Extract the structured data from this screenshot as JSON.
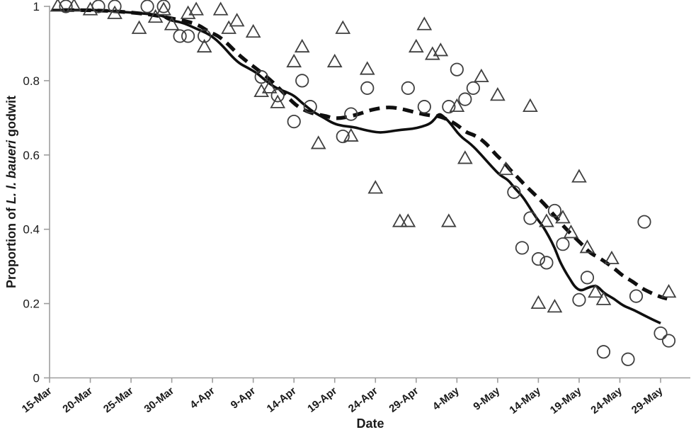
{
  "figure": {
    "x_axis_title": "Date",
    "y_axis_title_prefix": "Proportion of ",
    "y_axis_title_italic": "L. l. baueri",
    "y_axis_title_suffix": " godwit",
    "colors": {
      "background": "#ffffff",
      "axis_line": "#9e9e9e",
      "tick_text": "#1a1a1a",
      "marker_stroke": "#3f3f3f",
      "trend_line": "#0f0f0f"
    }
  },
  "chart_data": {
    "type": "scatter",
    "title": "",
    "xlabel": "Date",
    "ylabel": "Proportion of L. l. baueri godwit",
    "ylim": [
      0,
      1
    ],
    "grid": false,
    "legend": "none",
    "y_ticks": [
      0,
      0.2,
      0.4,
      0.6,
      0.8,
      1
    ],
    "y_tick_labels": [
      "0",
      "0.2",
      "0.4",
      "0.6",
      "0.8",
      "1"
    ],
    "x_axis": {
      "start": "15-Mar",
      "end": "29-May",
      "tick_interval_days": 5,
      "tick_labels": [
        "15-Mar",
        "20-Mar",
        "25-Mar",
        "30-Mar",
        "4-Apr",
        "9-Apr",
        "14-Apr",
        "19-Apr",
        "24-Apr",
        "29-Apr",
        "4-May",
        "9-May",
        "14-May",
        "19-May",
        "24-May",
        "29-May"
      ]
    },
    "series": [
      {
        "name": "circle observations",
        "marker": "circle",
        "points": [
          [
            "17-Mar",
            1.0
          ],
          [
            "21-Mar",
            1.0
          ],
          [
            "23-Mar",
            1.0
          ],
          [
            "27-Mar",
            1.0
          ],
          [
            "29-Mar",
            1.0
          ],
          [
            "31-Mar",
            0.92
          ],
          [
            "1-Apr",
            0.92
          ],
          [
            "3-Apr",
            0.92
          ],
          [
            "10-Apr",
            0.81
          ],
          [
            "12-Apr",
            0.76
          ],
          [
            "14-Apr",
            0.69
          ],
          [
            "15-Apr",
            0.8
          ],
          [
            "16-Apr",
            0.73
          ],
          [
            "20-Apr",
            0.65
          ],
          [
            "21-Apr",
            0.71
          ],
          [
            "23-Apr",
            0.78
          ],
          [
            "28-Apr",
            0.78
          ],
          [
            "30-Apr",
            0.73
          ],
          [
            "3-May",
            0.73
          ],
          [
            "4-May",
            0.83
          ],
          [
            "5-May",
            0.75
          ],
          [
            "6-May",
            0.78
          ],
          [
            "11-May",
            0.5
          ],
          [
            "12-May",
            0.35
          ],
          [
            "13-May",
            0.43
          ],
          [
            "14-May",
            0.32
          ],
          [
            "15-May",
            0.31
          ],
          [
            "16-May",
            0.45
          ],
          [
            "17-May",
            0.36
          ],
          [
            "19-May",
            0.21
          ],
          [
            "20-May",
            0.27
          ],
          [
            "22-May",
            0.07
          ],
          [
            "25-May",
            0.05
          ],
          [
            "26-May",
            0.22
          ],
          [
            "27-May",
            0.42
          ],
          [
            "29-May",
            0.12
          ],
          [
            "30-May",
            0.1
          ]
        ]
      },
      {
        "name": "triangle observations",
        "marker": "triangle",
        "points": [
          [
            "16-Mar",
            1.0
          ],
          [
            "18-Mar",
            1.0
          ],
          [
            "20-Mar",
            0.99
          ],
          [
            "23-Mar",
            0.98
          ],
          [
            "26-Mar",
            0.94
          ],
          [
            "28-Mar",
            0.97
          ],
          [
            "29-Mar",
            0.99
          ],
          [
            "30-Mar",
            0.95
          ],
          [
            "1-Apr",
            0.98
          ],
          [
            "2-Apr",
            0.99
          ],
          [
            "3-Apr",
            0.89
          ],
          [
            "5-Apr",
            0.99
          ],
          [
            "6-Apr",
            0.94
          ],
          [
            "7-Apr",
            0.96
          ],
          [
            "9-Apr",
            0.93
          ],
          [
            "10-Apr",
            0.77
          ],
          [
            "11-Apr",
            0.78
          ],
          [
            "12-Apr",
            0.74
          ],
          [
            "14-Apr",
            0.85
          ],
          [
            "15-Apr",
            0.89
          ],
          [
            "17-Apr",
            0.63
          ],
          [
            "19-Apr",
            0.85
          ],
          [
            "20-Apr",
            0.94
          ],
          [
            "21-Apr",
            0.65
          ],
          [
            "23-Apr",
            0.83
          ],
          [
            "24-Apr",
            0.51
          ],
          [
            "27-Apr",
            0.42
          ],
          [
            "28-Apr",
            0.42
          ],
          [
            "29-Apr",
            0.89
          ],
          [
            "30-Apr",
            0.95
          ],
          [
            "1-May",
            0.87
          ],
          [
            "2-May",
            0.88
          ],
          [
            "3-May",
            0.42
          ],
          [
            "4-May",
            0.73
          ],
          [
            "5-May",
            0.59
          ],
          [
            "7-May",
            0.81
          ],
          [
            "9-May",
            0.76
          ],
          [
            "10-May",
            0.56
          ],
          [
            "13-May",
            0.73
          ],
          [
            "14-May",
            0.2
          ],
          [
            "15-May",
            0.42
          ],
          [
            "16-May",
            0.19
          ],
          [
            "17-May",
            0.43
          ],
          [
            "18-May",
            0.39
          ],
          [
            "19-May",
            0.54
          ],
          [
            "20-May",
            0.35
          ],
          [
            "21-May",
            0.23
          ],
          [
            "22-May",
            0.21
          ],
          [
            "23-May",
            0.32
          ],
          [
            "30-May",
            0.23
          ]
        ]
      },
      {
        "name": "solid smoothed trend",
        "style": "solid",
        "points_day_value": [
          [
            0.3,
            0.99
          ],
          [
            3.5,
            0.99
          ],
          [
            6,
            0.99
          ],
          [
            9,
            0.985
          ],
          [
            12,
            0.98
          ],
          [
            14,
            0.975
          ],
          [
            14.6,
            0.963
          ],
          [
            16.3,
            0.957
          ],
          [
            18,
            0.94
          ],
          [
            19.6,
            0.925
          ],
          [
            21,
            0.9
          ],
          [
            23,
            0.85
          ],
          [
            24.3,
            0.835
          ],
          [
            25.5,
            0.82
          ],
          [
            26.5,
            0.8
          ],
          [
            27.8,
            0.78
          ],
          [
            29,
            0.77
          ],
          [
            30,
            0.76
          ],
          [
            31,
            0.74
          ],
          [
            32.4,
            0.715
          ],
          [
            33.7,
            0.7
          ],
          [
            34.8,
            0.685
          ],
          [
            36,
            0.678
          ],
          [
            37.4,
            0.675
          ],
          [
            38.5,
            0.668
          ],
          [
            39.6,
            0.663
          ],
          [
            40.6,
            0.66
          ],
          [
            41.7,
            0.663
          ],
          [
            43.2,
            0.668
          ],
          [
            44.5,
            0.67
          ],
          [
            45.7,
            0.676
          ],
          [
            46.7,
            0.684
          ],
          [
            47.3,
            0.697
          ],
          [
            47.8,
            0.712
          ],
          [
            48.4,
            0.703
          ],
          [
            49.1,
            0.688
          ],
          [
            50.4,
            0.65
          ],
          [
            51.7,
            0.63
          ],
          [
            53,
            0.6
          ],
          [
            54.3,
            0.568
          ],
          [
            55.3,
            0.545
          ],
          [
            56.3,
            0.533
          ],
          [
            57.1,
            0.51
          ],
          [
            58,
            0.49
          ],
          [
            58.9,
            0.46
          ],
          [
            59.7,
            0.432
          ],
          [
            60.5,
            0.41
          ],
          [
            61.3,
            0.38
          ],
          [
            62,
            0.35
          ],
          [
            62.6,
            0.315
          ],
          [
            63.2,
            0.29
          ],
          [
            63.9,
            0.265
          ],
          [
            64.5,
            0.244
          ],
          [
            65.2,
            0.234
          ],
          [
            66,
            0.242
          ],
          [
            66.8,
            0.248
          ],
          [
            67.3,
            0.246
          ],
          [
            68.1,
            0.227
          ],
          [
            69.3,
            0.213
          ],
          [
            70.4,
            0.194
          ],
          [
            71.7,
            0.183
          ],
          [
            73,
            0.168
          ],
          [
            74.1,
            0.156
          ],
          [
            75,
            0.147
          ]
        ]
      },
      {
        "name": "dashed smoothed trend",
        "style": "dashed",
        "points_day_value": [
          [
            1.7,
            0.99
          ],
          [
            5.2,
            0.99
          ],
          [
            8.7,
            0.986
          ],
          [
            12.2,
            0.979
          ],
          [
            15.4,
            0.966
          ],
          [
            17.4,
            0.957
          ],
          [
            18.5,
            0.947
          ],
          [
            19.6,
            0.931
          ],
          [
            20.6,
            0.922
          ],
          [
            21.7,
            0.903
          ],
          [
            23,
            0.874
          ],
          [
            24.3,
            0.85
          ],
          [
            25.7,
            0.827
          ],
          [
            27,
            0.804
          ],
          [
            28.3,
            0.777
          ],
          [
            29.3,
            0.754
          ],
          [
            30.4,
            0.731
          ],
          [
            31.7,
            0.716
          ],
          [
            32.9,
            0.709
          ],
          [
            33.9,
            0.705
          ],
          [
            34.8,
            0.699
          ],
          [
            35.7,
            0.699
          ],
          [
            36.7,
            0.703
          ],
          [
            37.8,
            0.709
          ],
          [
            39,
            0.718
          ],
          [
            40,
            0.724
          ],
          [
            41.1,
            0.728
          ],
          [
            42.2,
            0.728
          ],
          [
            43.2,
            0.724
          ],
          [
            44.3,
            0.718
          ],
          [
            45.4,
            0.712
          ],
          [
            46.5,
            0.707
          ],
          [
            47.6,
            0.705
          ],
          [
            48.5,
            0.699
          ],
          [
            49.3,
            0.69
          ],
          [
            50.2,
            0.678
          ],
          [
            51.1,
            0.661
          ],
          [
            52.2,
            0.653
          ],
          [
            53.1,
            0.64
          ],
          [
            54,
            0.621
          ],
          [
            54.9,
            0.598
          ],
          [
            55.7,
            0.583
          ],
          [
            56.6,
            0.558
          ],
          [
            57.5,
            0.539
          ],
          [
            58.3,
            0.52
          ],
          [
            59.2,
            0.501
          ],
          [
            60.1,
            0.482
          ],
          [
            61.1,
            0.459
          ],
          [
            62,
            0.436
          ],
          [
            62.9,
            0.413
          ],
          [
            63.7,
            0.394
          ],
          [
            64.6,
            0.375
          ],
          [
            65.5,
            0.356
          ],
          [
            66.3,
            0.337
          ],
          [
            67.4,
            0.324
          ],
          [
            68.4,
            0.309
          ],
          [
            69.4,
            0.293
          ],
          [
            70.4,
            0.274
          ],
          [
            71.6,
            0.259
          ],
          [
            72.6,
            0.242
          ],
          [
            73.7,
            0.23
          ],
          [
            74.8,
            0.219
          ],
          [
            75.8,
            0.213
          ]
        ]
      }
    ]
  }
}
